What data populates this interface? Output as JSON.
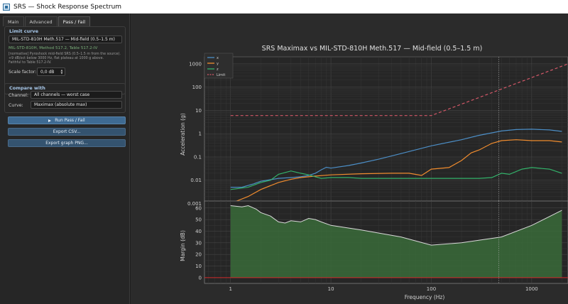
{
  "window": {
    "title": "SRS — Shock Response Spectrum"
  },
  "tabs": [
    {
      "label": "Main"
    },
    {
      "label": "Advanced"
    },
    {
      "label": "Pass / Fail"
    }
  ],
  "limit_curve": {
    "title": "Limit curve",
    "selected": "MIL-STD-810H Meth.517 — Mid-field (0.5–1.5 m)",
    "source": "MIL-STD-810H, Method 517.2, Table 517.2-IV",
    "note_lines": [
      "[normative] Pyroshock mid-field SRS (0.5–1.5 m from the source).",
      "+9 dB/oct below 3000 Hz, flat plateau at 1000 g above.",
      "Faithful to Table 517.2-IV."
    ],
    "scale_label": "Scale factor:",
    "scale_value": "0,0 dB"
  },
  "compare": {
    "title": "Compare with",
    "channel_label": "Channel:",
    "channel_value": "All channels — worst case",
    "curve_label": "Curve:",
    "curve_value": "Maximax (absolute max)"
  },
  "buttons": {
    "run": "Run Pass / Fail",
    "export_csv": "Export CSV...",
    "export_graph": "Export graph PNG..."
  },
  "colors": {
    "x": "#4c8ec6",
    "y": "#f08c2e",
    "z": "#33b26a",
    "limit": "#d45868",
    "margin_fill": "#3a6b3a",
    "margin_line": "#d9d9d9",
    "zero_line": "#d22b2b"
  },
  "chart_data": [
    {
      "type": "line",
      "title": "SRS Maximax  vs  MIL-STD-810H Meth.517 — Mid-field (0.5–1.5 m)",
      "xlabel": "",
      "ylabel": "Acceleration (g)",
      "xscale": "log",
      "yscale": "log",
      "xlim": [
        0.55,
        2300
      ],
      "ylim": [
        0.00055,
        2000
      ],
      "yticks": [
        "1000",
        "100",
        "10",
        "1",
        "0.1",
        "0.01",
        "0.001"
      ],
      "grid": true,
      "legend_position": "top-left",
      "series": [
        {
          "name": "x",
          "x": [
            1,
            1.3,
            1.7,
            2,
            3,
            4,
            5,
            6,
            7,
            8,
            9,
            10,
            15,
            20,
            30,
            50,
            100,
            200,
            300,
            500,
            700,
            1000,
            1500,
            2000
          ],
          "values": [
            0.005,
            0.005,
            0.007,
            0.009,
            0.012,
            0.013,
            0.014,
            0.016,
            0.02,
            0.028,
            0.036,
            0.033,
            0.043,
            0.055,
            0.08,
            0.14,
            0.3,
            0.55,
            0.85,
            1.3,
            1.5,
            1.55,
            1.45,
            1.25
          ]
        },
        {
          "name": "y",
          "x": [
            1,
            1.5,
            2,
            3,
            4,
            5,
            7,
            10,
            20,
            40,
            60,
            80,
            100,
            150,
            200,
            250,
            300,
            400,
            500,
            700,
            1000,
            1500,
            2000
          ],
          "values": [
            0.001,
            0.002,
            0.004,
            0.008,
            0.011,
            0.013,
            0.015,
            0.017,
            0.019,
            0.02,
            0.02,
            0.016,
            0.03,
            0.035,
            0.07,
            0.15,
            0.2,
            0.38,
            0.5,
            0.55,
            0.5,
            0.5,
            0.44
          ]
        },
        {
          "name": "z",
          "x": [
            1,
            1.5,
            2,
            2.5,
            3,
            4,
            5,
            6,
            7,
            8,
            10,
            15,
            20,
            30,
            50,
            100,
            200,
            300,
            400,
            500,
            600,
            800,
            1000,
            1500,
            2000
          ],
          "values": [
            0.004,
            0.005,
            0.008,
            0.01,
            0.018,
            0.025,
            0.02,
            0.017,
            0.014,
            0.012,
            0.013,
            0.013,
            0.012,
            0.012,
            0.012,
            0.012,
            0.012,
            0.012,
            0.013,
            0.02,
            0.018,
            0.03,
            0.035,
            0.03,
            0.02
          ]
        },
        {
          "name": "Limit",
          "x": [
            1,
            100,
            2300
          ],
          "values": [
            6,
            6,
            1000
          ]
        }
      ]
    },
    {
      "type": "area",
      "xlabel": "Frequency (Hz)",
      "ylabel": "Margin (dB)",
      "xscale": "log",
      "xlim": [
        0.55,
        2300
      ],
      "ylim": [
        -5,
        66
      ],
      "yticks": [
        "60",
        "50",
        "40",
        "30",
        "20",
        "10",
        "0"
      ],
      "xticks": [
        "1",
        "10",
        "100",
        "1000"
      ],
      "grid": true,
      "series": [
        {
          "name": "",
          "x": [
            1,
            1.3,
            1.5,
            1.8,
            2,
            2.5,
            3,
            3.5,
            4,
            5,
            6,
            7,
            8,
            10,
            20,
            50,
            100,
            200,
            500,
            1000,
            2000
          ],
          "values": [
            62,
            61,
            62,
            59,
            56,
            53,
            48,
            47,
            49,
            48,
            51,
            50,
            48,
            45,
            41,
            35,
            28,
            30,
            35,
            45,
            58
          ]
        }
      ]
    }
  ]
}
